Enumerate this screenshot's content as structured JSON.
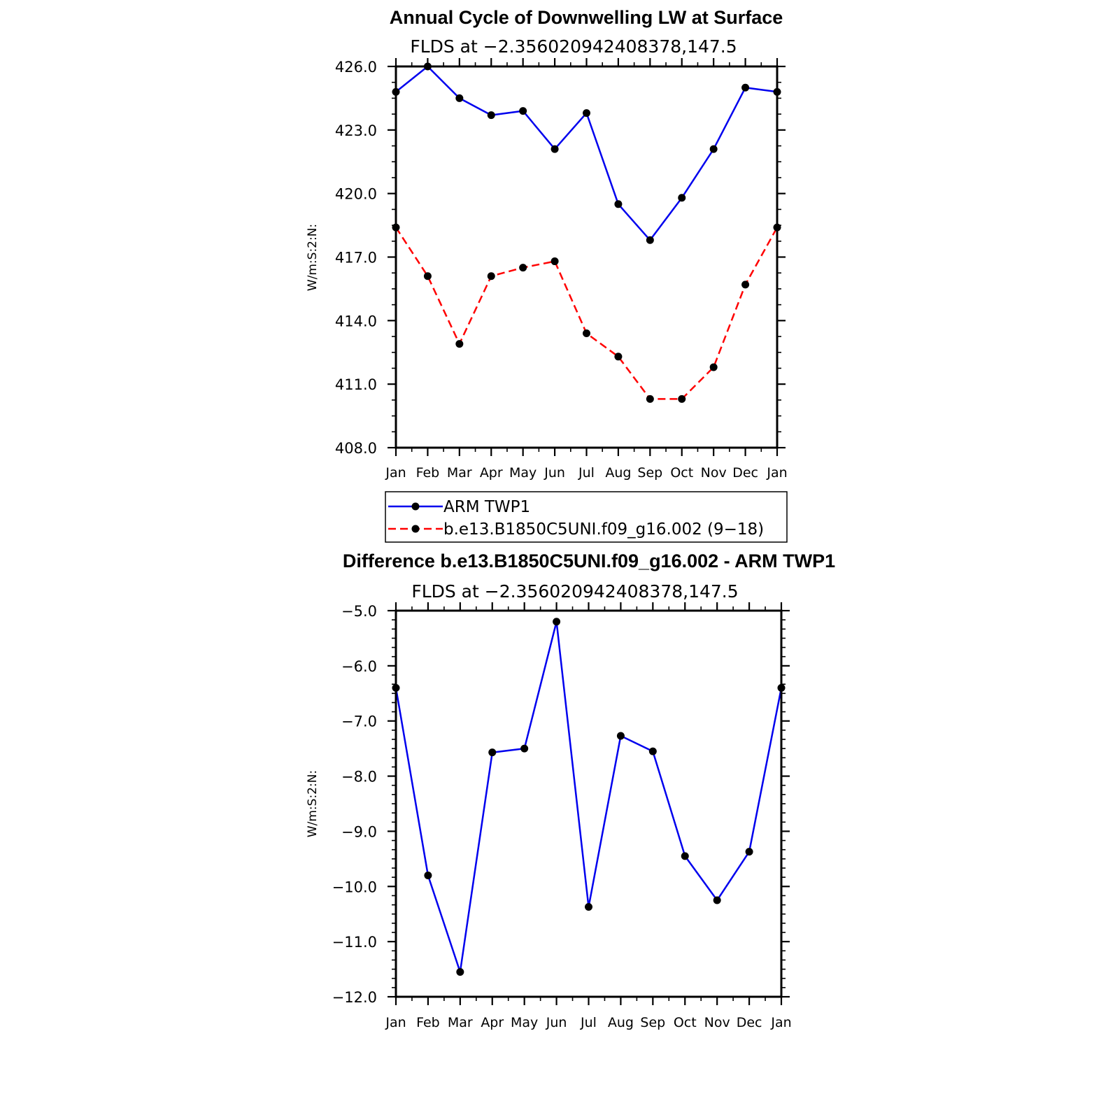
{
  "chart_data": [
    {
      "type": "line",
      "title": "Annual Cycle of Downwelling LW at Surface",
      "subtitle": "FLDS at −2.356020942408378,147.5",
      "ylabel": "W/m:S:2:N:",
      "ylim": [
        408.0,
        426.0
      ],
      "yticks": [
        "426.0",
        "423.0",
        "420.0",
        "417.0",
        "414.0",
        "411.0",
        "408.0"
      ],
      "ytick_values": [
        426,
        423,
        420,
        417,
        414,
        411,
        408
      ],
      "categories": [
        "Jan",
        "Feb",
        "Mar",
        "Apr",
        "May",
        "Jun",
        "Jul",
        "Aug",
        "Sep",
        "Oct",
        "Nov",
        "Dec",
        "Jan"
      ],
      "legend_position": "below",
      "series": [
        {
          "name": "ARM TWP1",
          "color": "#0000ee",
          "dash": "solid",
          "values": [
            424.8,
            426.0,
            424.5,
            423.7,
            423.9,
            422.1,
            423.8,
            419.5,
            417.8,
            419.8,
            422.1,
            425.0,
            424.8
          ]
        },
        {
          "name": "b.e13.B1850C5UNI.f09_g16.002 (9−18)",
          "color": "#ff0000",
          "dash": "dashed",
          "values": [
            418.4,
            416.1,
            412.9,
            416.1,
            416.5,
            416.8,
            413.4,
            412.3,
            410.3,
            410.3,
            411.8,
            415.7,
            418.4
          ]
        }
      ]
    },
    {
      "type": "line",
      "title": "Difference b.e13.B1850C5UNI.f09_g16.002 - ARM TWP1",
      "subtitle": "FLDS at −2.356020942408378,147.5",
      "ylabel": "W/m:S:2:N:",
      "ylim": [
        -12.0,
        -5.0
      ],
      "yticks": [
        "−5.0",
        "−6.0",
        "−7.0",
        "−8.0",
        "−9.0",
        "−10.0",
        "−11.0",
        "−12.0"
      ],
      "ytick_values": [
        -5,
        -6,
        -7,
        -8,
        -9,
        -10,
        -11,
        -12
      ],
      "categories": [
        "Jan",
        "Feb",
        "Mar",
        "Apr",
        "May",
        "Jun",
        "Jul",
        "Aug",
        "Sep",
        "Oct",
        "Nov",
        "Dec",
        "Jan"
      ],
      "series": [
        {
          "color": "#0000ee",
          "dash": "solid",
          "values": [
            -6.4,
            -9.8,
            -11.55,
            -7.57,
            -7.5,
            -5.2,
            -10.37,
            -7.27,
            -7.55,
            -9.45,
            -10.25,
            -9.37,
            -6.4
          ]
        }
      ]
    }
  ]
}
